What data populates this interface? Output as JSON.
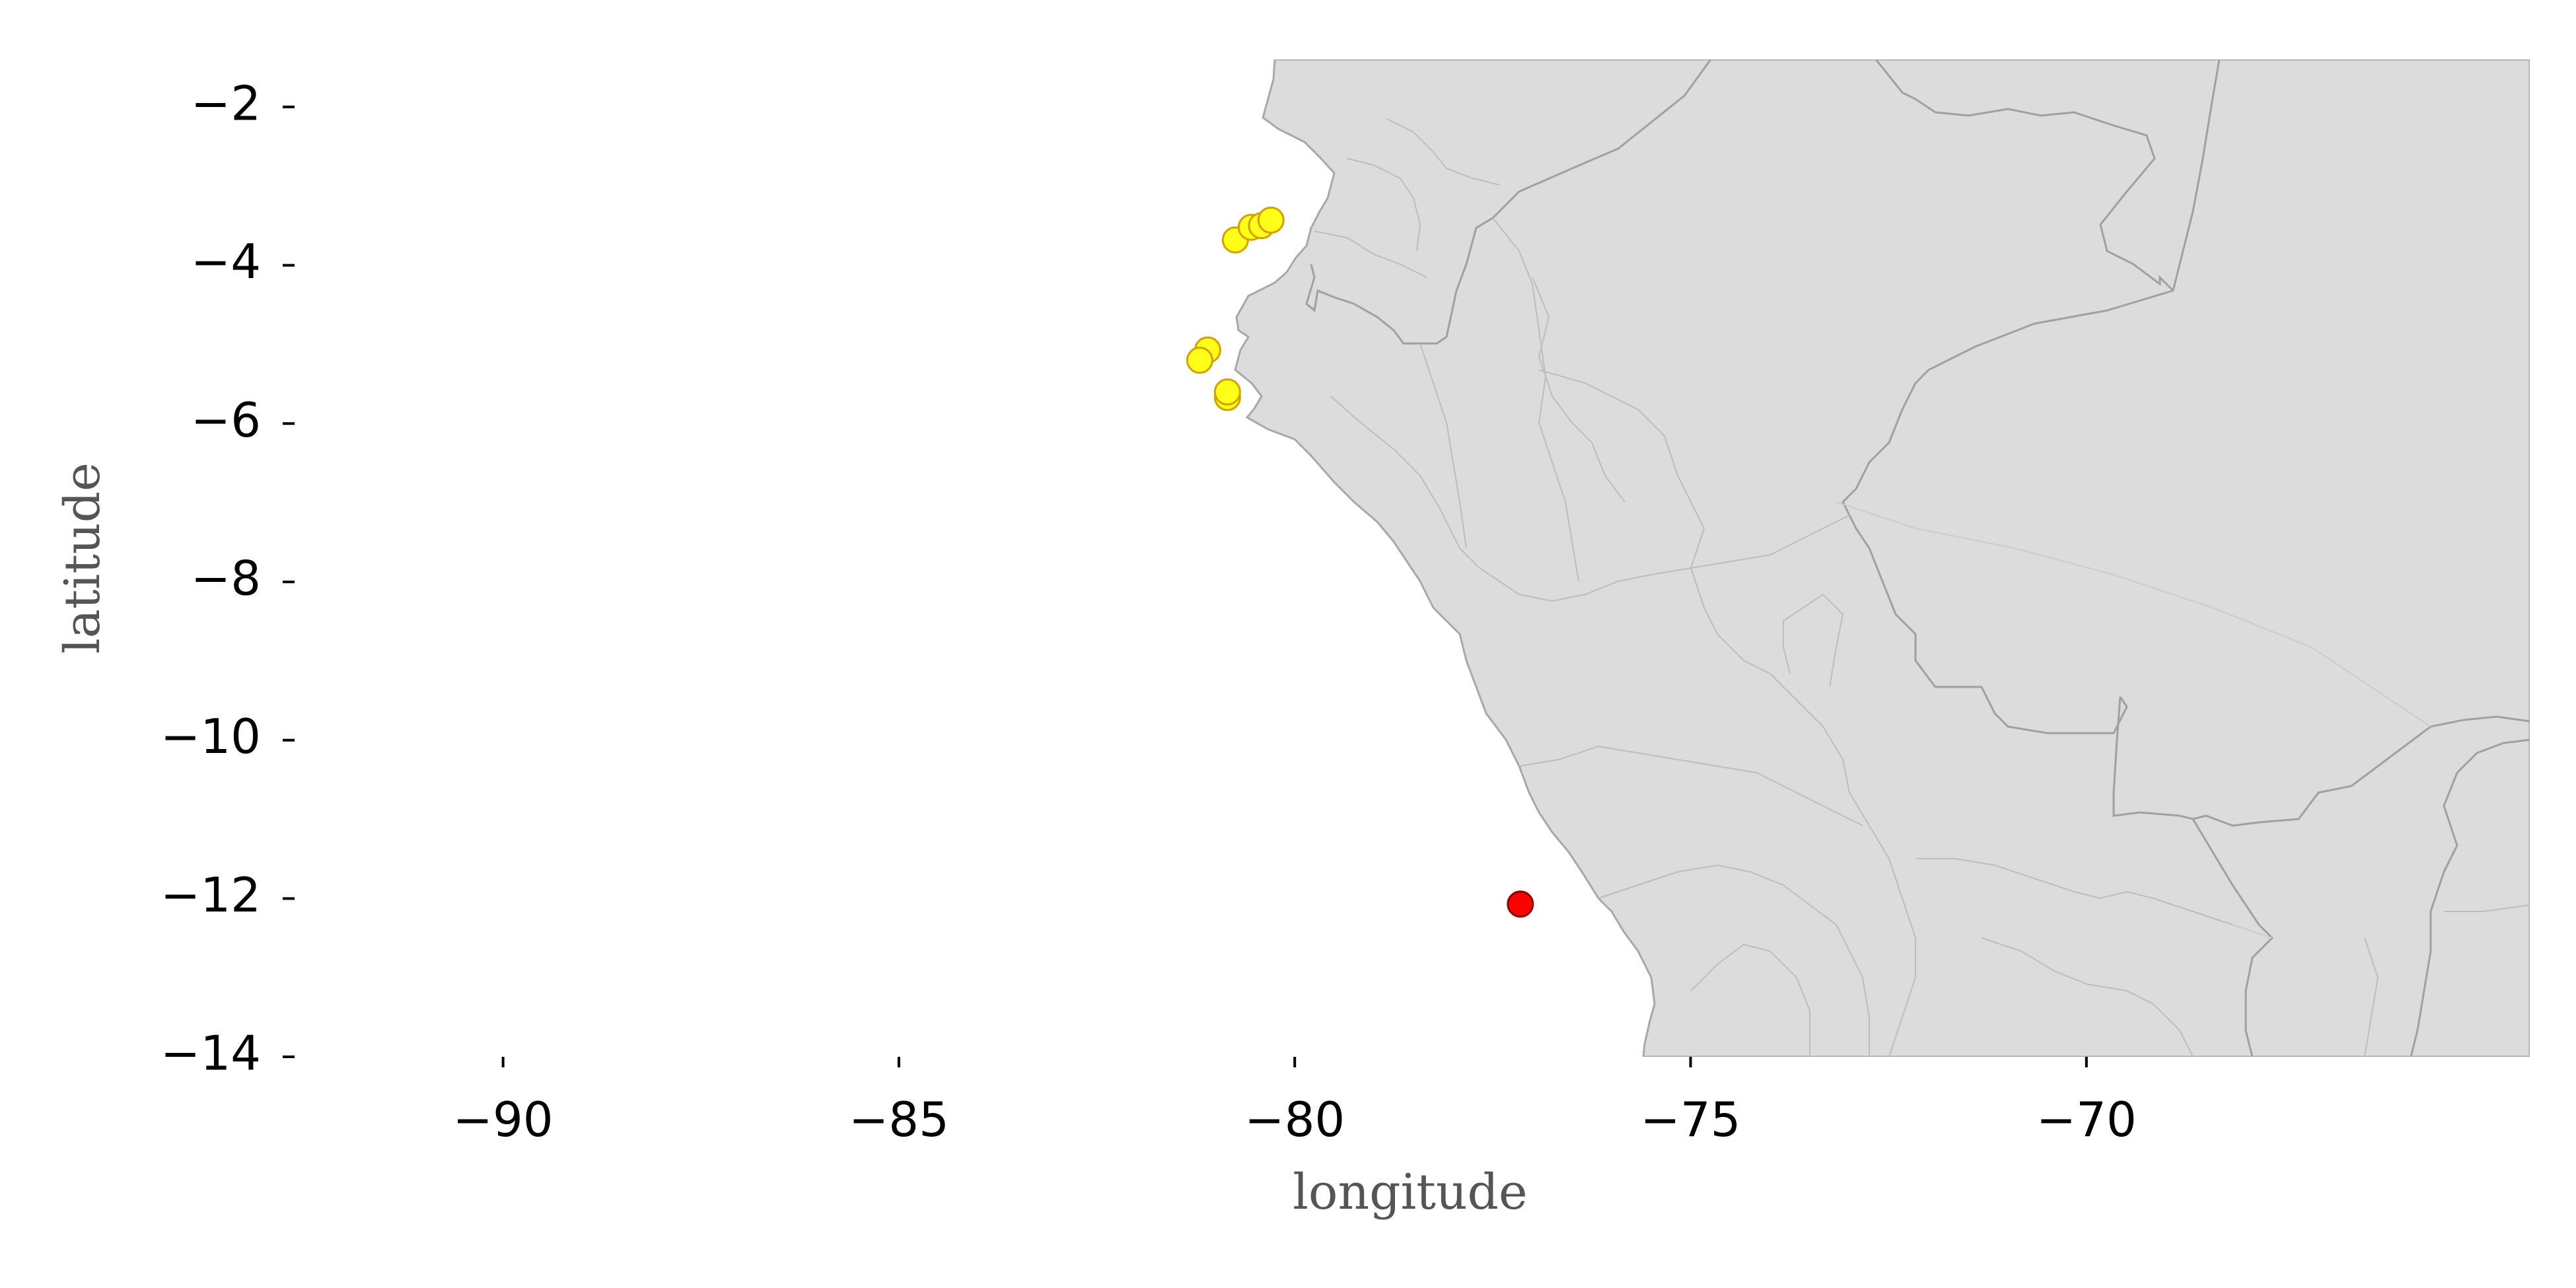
{
  "chart_data": {
    "type": "scatter",
    "subtype": "geographic-map",
    "title": "",
    "xlabel": "longitude",
    "ylabel": "latitude",
    "xlim": [
      -92.6,
      -64.4
    ],
    "ylim": [
      -14,
      -1.4
    ],
    "x_ticks": [
      -90,
      -85,
      -80,
      -75,
      -70
    ],
    "x_tick_labels": [
      "−90",
      "−85",
      "−80",
      "−75",
      "−70"
    ],
    "y_ticks": [
      -2,
      -4,
      -6,
      -8,
      -10,
      -12,
      -14
    ],
    "y_tick_labels": [
      "−2",
      "−4",
      "−6",
      "−8",
      "−10",
      "−12",
      "−14"
    ],
    "grid": false,
    "land_color": "#dcdcdc",
    "border_color": "#a8a8a8",
    "series": [
      {
        "color": "#ffff1a",
        "edge_color": "#d4a000",
        "points": [
          {
            "x": -80.75,
            "y": -3.68
          },
          {
            "x": -80.55,
            "y": -3.52
          },
          {
            "x": -80.42,
            "y": -3.5
          },
          {
            "x": -80.3,
            "y": -3.43
          },
          {
            "x": -81.1,
            "y": -5.07
          },
          {
            "x": -81.2,
            "y": -5.2
          },
          {
            "x": -80.85,
            "y": -5.67
          },
          {
            "x": -80.85,
            "y": -5.6
          }
        ]
      },
      {
        "color": "#ff0000",
        "edge_color": "#8b0000",
        "points": [
          {
            "x": -77.15,
            "y": -12.07
          }
        ]
      }
    ]
  }
}
